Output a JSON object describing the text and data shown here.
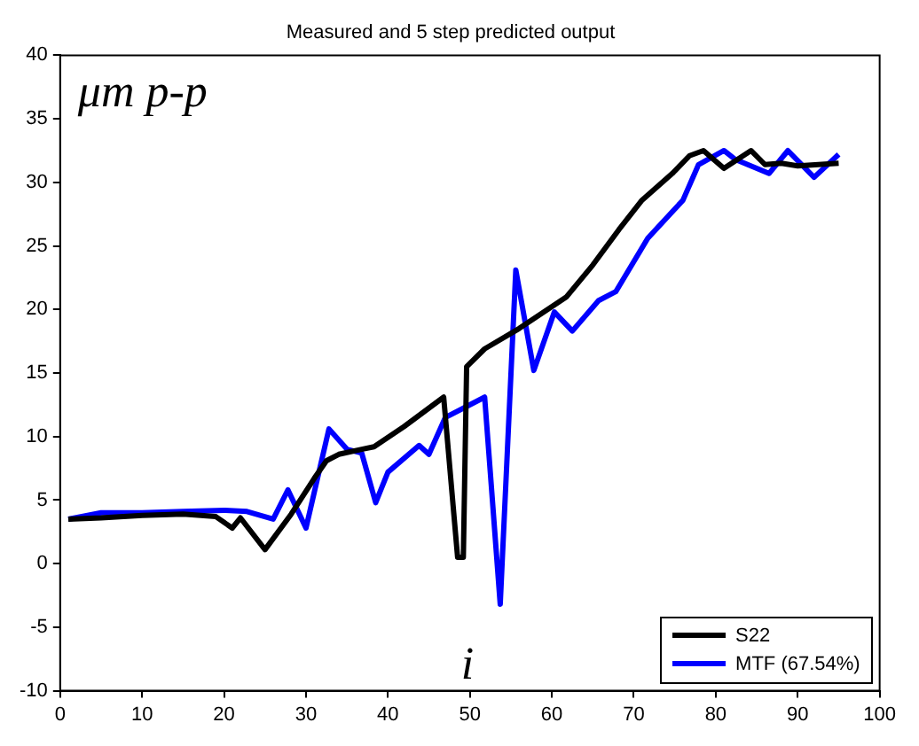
{
  "chart_data": {
    "type": "line",
    "title": "Measured and 5 step predicted output",
    "annotations": [
      "μm p-p",
      "i"
    ],
    "xlim": [
      0,
      100
    ],
    "ylim": [
      -10,
      40
    ],
    "xticks": [
      0,
      10,
      20,
      30,
      40,
      50,
      60,
      70,
      80,
      90,
      100
    ],
    "yticks": [
      -10,
      -5,
      0,
      5,
      10,
      15,
      20,
      25,
      30,
      35,
      40
    ],
    "legend": "bottom right",
    "marker": "none",
    "line_style": "solid",
    "series": [
      {
        "name": "S22",
        "color": "#000000",
        "x": [
          1,
          5,
          10,
          15,
          19,
          21,
          22,
          25,
          28.2,
          31,
          32.5,
          34,
          36.8,
          38.3,
          42,
          46.8,
          48.5,
          49.2,
          49.6,
          51.8,
          56,
          61.8,
          65,
          68.2,
          71,
          74.7,
          76.8,
          78.5,
          81,
          84.3,
          86,
          88,
          90,
          95
        ],
        "values": [
          3.5,
          3.6,
          3.8,
          3.9,
          3.7,
          2.8,
          3.6,
          1.1,
          3.9,
          6.7,
          8.1,
          8.6,
          9,
          9.2,
          10.8,
          13.1,
          0.5,
          0.5,
          15.5,
          16.9,
          18.5,
          21,
          23.5,
          26.3,
          28.6,
          30.7,
          32.1,
          32.5,
          31.1,
          32.5,
          31.4,
          31.5,
          31.3,
          31.5
        ]
      },
      {
        "name": "MTF (67.54%)",
        "color": "#0000ff",
        "x": [
          1,
          5,
          10,
          15,
          20,
          22.8,
          26,
          27.8,
          30,
          32.8,
          35,
          36.8,
          38.5,
          40,
          43.8,
          45,
          47,
          51.8,
          53.7,
          55.6,
          57.8,
          60.3,
          62.5,
          65.7,
          67.8,
          71.7,
          76,
          77.9,
          81,
          82.4,
          86.5,
          88.8,
          92,
          95
        ],
        "values": [
          3.5,
          4,
          4,
          4.1,
          4.2,
          4.1,
          3.5,
          5.8,
          2.8,
          10.6,
          9,
          8.7,
          4.8,
          7.2,
          9.3,
          8.6,
          11.5,
          13.1,
          -3.2,
          23.1,
          15.2,
          19.8,
          18.3,
          20.7,
          21.4,
          25.6,
          28.6,
          31.4,
          32.5,
          31.8,
          30.7,
          32.5,
          30.4,
          32.2
        ]
      }
    ]
  }
}
